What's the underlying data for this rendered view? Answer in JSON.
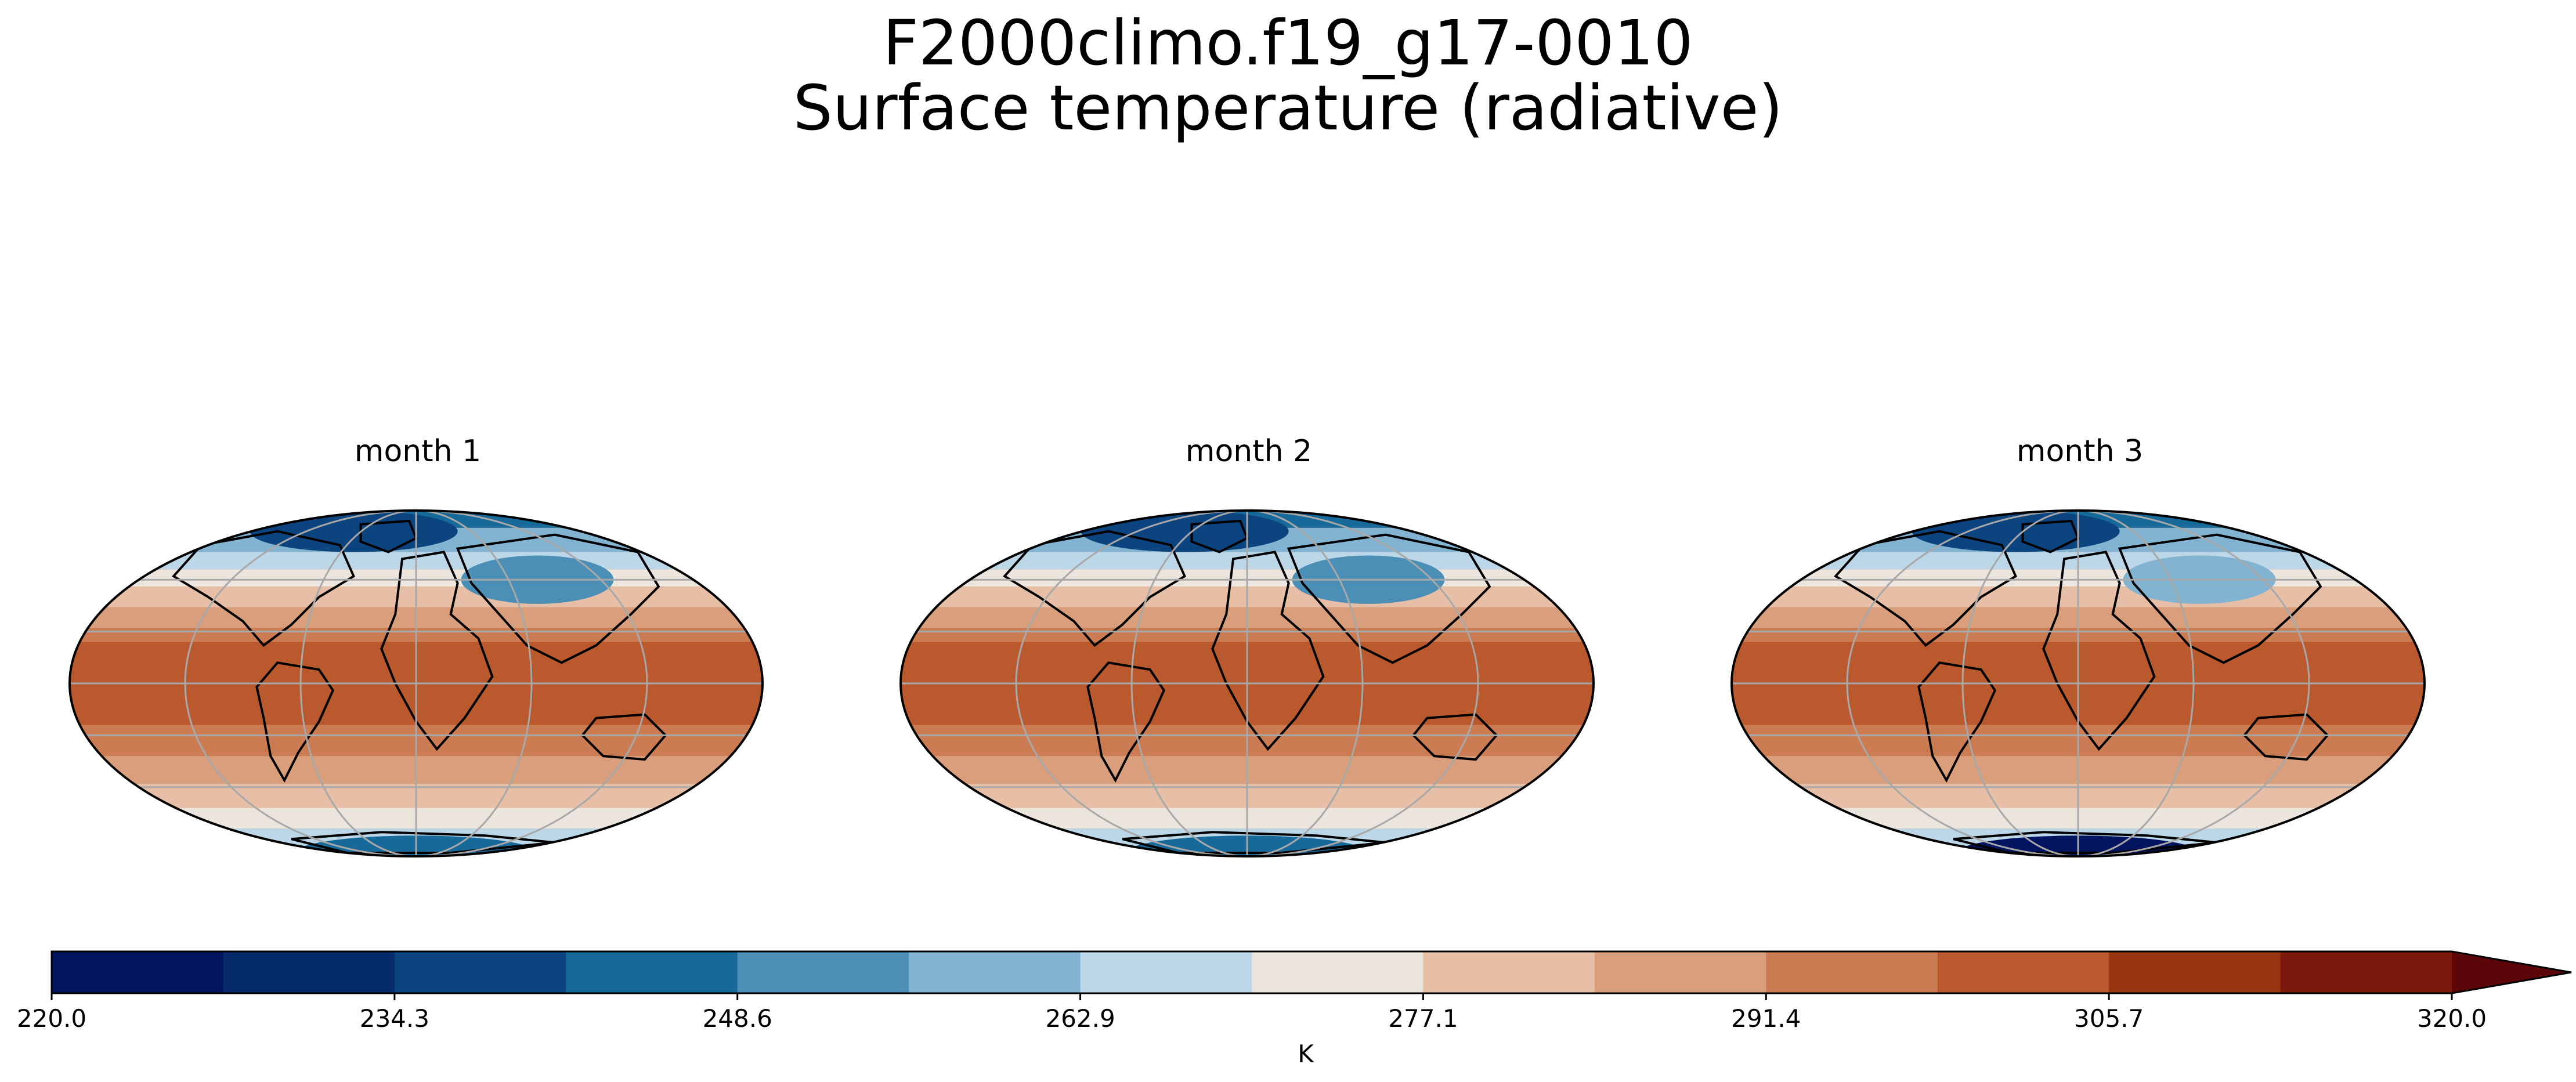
{
  "figure": {
    "title_line1": "F2000climo.f19_g17-0010",
    "title_line2": "Surface temperature (radiative)"
  },
  "panels": [
    {
      "title": "month 1"
    },
    {
      "title": "month 2"
    },
    {
      "title": "month 3"
    }
  ],
  "colorbar": {
    "units": "K",
    "tick_labels": [
      "220.0",
      "234.3",
      "248.6",
      "262.9",
      "277.1",
      "291.4",
      "305.7",
      "320.0"
    ],
    "levels_min": 220.0,
    "levels_max": 320.0,
    "extend": "max",
    "colors": [
      "#021460",
      "#062b6b",
      "#0c447f",
      "#166999",
      "#4b8fb6",
      "#82b3d0",
      "#bcd7e7",
      "#ece5de",
      "#e6bfa6",
      "#d99f7d",
      "#cc7c52",
      "#b9592d",
      "#983510",
      "#7b1a0c",
      "#5c0609"
    ]
  },
  "chart_data": {
    "type": "map",
    "projection": "Mollweide",
    "variable": "Surface temperature (radiative)",
    "units": "K",
    "panels": [
      "month 1",
      "month 2",
      "month 3"
    ],
    "colorbar_range": [
      220.0,
      320.0
    ],
    "colorbar_extend": "max"
  }
}
